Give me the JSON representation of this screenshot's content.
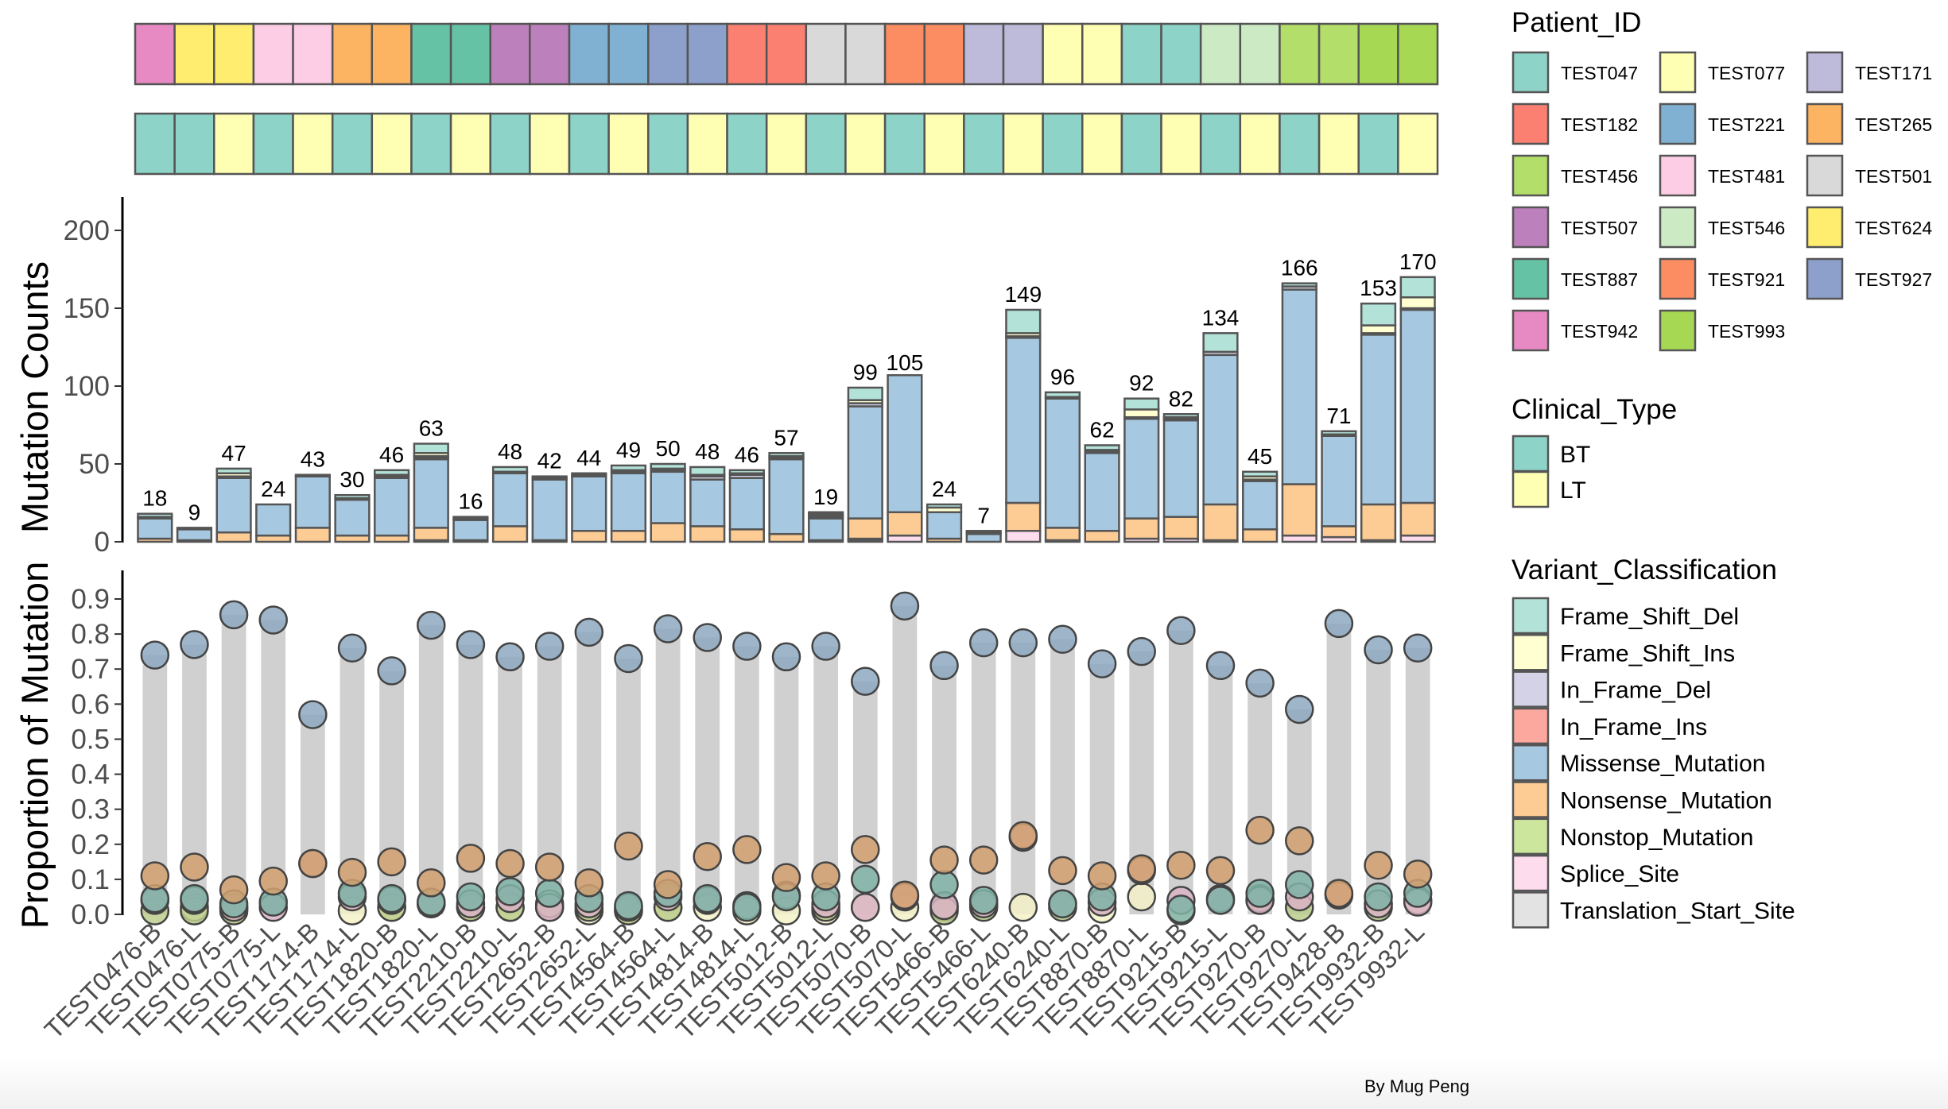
{
  "chart_data": {
    "type": "bar",
    "samples": [
      "TEST0476-B",
      "TEST0476-L",
      "TEST0775-B",
      "TEST0775-L",
      "TEST1714-B",
      "TEST1714-L",
      "TEST1820-B",
      "TEST1820-L",
      "TEST2210-B",
      "TEST2210-L",
      "TEST2652-B",
      "TEST2652-L",
      "TEST4564-B",
      "TEST4564-L",
      "TEST4814-B",
      "TEST4814-L",
      "TEST5012-B",
      "TEST5012-L",
      "TEST5070-B",
      "TEST5070-L",
      "TEST5466-B",
      "TEST5466-L",
      "TEST6240-B",
      "TEST6240-L",
      "TEST8870-B",
      "TEST8870-L",
      "TEST9215-B",
      "TEST9215-L",
      "TEST9270-B",
      "TEST9270-L",
      "TEST9428-B",
      "TEST9932-B",
      "TEST9932-L"
    ],
    "patient_track": {
      "title": "Patient_ID",
      "values": [
        "TEST942",
        "TEST624",
        "TEST624",
        "TEST481",
        "TEST481",
        "TEST265",
        "TEST265",
        "TEST887",
        "TEST887",
        "TEST507",
        "TEST507",
        "TEST221",
        "TEST221",
        "TEST927",
        "TEST927",
        "TEST182",
        "TEST182",
        "TEST501",
        "TEST501",
        "TEST921",
        "TEST921",
        "TEST171",
        "TEST171",
        "TEST077",
        "TEST077",
        "TEST047",
        "TEST047",
        "TEST546",
        "TEST546",
        "TEST456",
        "TEST456",
        "TEST993",
        "TEST993"
      ],
      "legend": [
        {
          "label": "TEST047",
          "color": "#8DD3C7"
        },
        {
          "label": "TEST077",
          "color": "#FFFFB3"
        },
        {
          "label": "TEST171",
          "color": "#BEBADA"
        },
        {
          "label": "TEST182",
          "color": "#FB8072"
        },
        {
          "label": "TEST221",
          "color": "#80B1D3"
        },
        {
          "label": "TEST265",
          "color": "#FDB462"
        },
        {
          "label": "TEST456",
          "color": "#B3DE69"
        },
        {
          "label": "TEST481",
          "color": "#FCCDE5"
        },
        {
          "label": "TEST501",
          "color": "#D9D9D9"
        },
        {
          "label": "TEST507",
          "color": "#BC80BD"
        },
        {
          "label": "TEST546",
          "color": "#CCEBC5"
        },
        {
          "label": "TEST624",
          "color": "#FFED6F"
        },
        {
          "label": "TEST887",
          "color": "#66C2A5"
        },
        {
          "label": "TEST921",
          "color": "#FC8D62"
        },
        {
          "label": "TEST927",
          "color": "#8DA0CB"
        },
        {
          "label": "TEST942",
          "color": "#E78AC3"
        },
        {
          "label": "TEST993",
          "color": "#A6D854"
        }
      ]
    },
    "clinical_track": {
      "title": "Clinical_Type",
      "values": [
        "BT",
        "BT",
        "LT",
        "BT",
        "LT",
        "BT",
        "LT",
        "BT",
        "LT",
        "BT",
        "LT",
        "BT",
        "LT",
        "BT",
        "LT",
        "BT",
        "LT",
        "BT",
        "LT",
        "BT",
        "LT",
        "BT",
        "LT",
        "BT",
        "LT",
        "BT",
        "LT",
        "BT",
        "LT",
        "BT",
        "LT",
        "BT",
        "LT"
      ],
      "legend": [
        {
          "label": "BT",
          "color": "#8DD3C7"
        },
        {
          "label": "LT",
          "color": "#FFFFB3"
        }
      ]
    },
    "variant_legend": {
      "title": "Variant_Classification",
      "items": [
        {
          "label": "Frame_Shift_Del",
          "color": "#B3E2D9"
        },
        {
          "label": "Frame_Shift_Ins",
          "color": "#FFFFD1"
        },
        {
          "label": "In_Frame_Del",
          "color": "#D4D2E6"
        },
        {
          "label": "In_Frame_Ins",
          "color": "#FDA89E"
        },
        {
          "label": "Missense_Mutation",
          "color": "#A6C8E0"
        },
        {
          "label": "Nonsense_Mutation",
          "color": "#FDCB94"
        },
        {
          "label": "Nonstop_Mutation",
          "color": "#CCE69E"
        },
        {
          "label": "Splice_Site",
          "color": "#FDDCED"
        },
        {
          "label": "Translation_Start_Site",
          "color": "#E3E3E3"
        }
      ]
    },
    "counts_panel": {
      "ylabel": "Mutation Counts",
      "ylim": [
        0,
        220
      ],
      "yticks": [
        0,
        50,
        100,
        150,
        200
      ],
      "totals": [
        18,
        9,
        47,
        24,
        43,
        30,
        46,
        63,
        16,
        48,
        42,
        44,
        49,
        50,
        48,
        46,
        57,
        19,
        99,
        105,
        24,
        7,
        149,
        96,
        62,
        92,
        82,
        134,
        45,
        166,
        71,
        153,
        170
      ],
      "series": [
        {
          "name": "Splice_Site",
          "values": [
            0,
            0,
            0,
            0,
            0,
            0,
            0,
            1,
            0,
            0,
            1,
            0,
            0,
            0,
            0,
            0,
            0,
            0,
            1,
            4,
            0,
            0,
            7,
            1,
            0,
            2,
            2,
            1,
            0,
            4,
            3,
            1,
            4
          ]
        },
        {
          "name": "Nonstop_Mutation",
          "values": [
            0,
            0,
            0,
            0,
            0,
            0,
            0,
            0,
            0,
            0,
            0,
            0,
            0,
            0,
            0,
            0,
            0,
            0,
            1,
            0,
            0,
            0,
            0,
            0,
            0,
            0,
            0,
            0,
            0,
            0,
            0,
            0,
            0
          ]
        },
        {
          "name": "Nonsense_Mutation",
          "values": [
            2,
            1,
            6,
            4,
            9,
            4,
            4,
            8,
            1,
            10,
            0,
            7,
            7,
            12,
            10,
            8,
            5,
            1,
            13,
            15,
            2,
            0,
            18,
            8,
            7,
            13,
            14,
            23,
            8,
            33,
            7,
            23,
            21
          ]
        },
        {
          "name": "Missense_Mutation",
          "values": [
            13,
            7,
            35,
            20,
            33,
            23,
            37,
            44,
            13,
            34,
            39,
            35,
            37,
            33,
            30,
            33,
            48,
            14,
            72,
            88,
            17,
            5,
            106,
            83,
            50,
            64,
            62,
            96,
            31,
            125,
            58,
            109,
            124
          ]
        },
        {
          "name": "In_Frame_Del",
          "values": [
            1,
            0,
            1,
            0,
            0,
            0,
            1,
            1,
            0,
            1,
            0,
            0,
            1,
            1,
            2,
            2,
            1,
            1,
            2,
            0,
            0,
            1,
            1,
            1,
            1,
            1,
            1,
            2,
            1,
            2,
            1,
            1,
            1
          ]
        },
        {
          "name": "In_Frame_Ins",
          "values": [
            0,
            0,
            0,
            0,
            0,
            0,
            0,
            1,
            0,
            0,
            0,
            0,
            0,
            0,
            0,
            0,
            0,
            1,
            0,
            0,
            0,
            0,
            0,
            0,
            0,
            0,
            0,
            0,
            0,
            0,
            0,
            0,
            0
          ]
        },
        {
          "name": "Frame_Shift_Ins",
          "values": [
            0,
            1,
            2,
            0,
            0,
            1,
            1,
            2,
            1,
            0,
            1,
            1,
            1,
            1,
            1,
            1,
            1,
            1,
            2,
            0,
            3,
            0,
            2,
            0,
            1,
            5,
            1,
            0,
            2,
            0,
            0,
            5,
            7
          ]
        },
        {
          "name": "Frame_Shift_Del",
          "values": [
            2,
            0,
            3,
            0,
            1,
            2,
            3,
            6,
            1,
            3,
            1,
            1,
            3,
            3,
            5,
            2,
            2,
            1,
            8,
            0,
            2,
            1,
            15,
            3,
            3,
            7,
            2,
            12,
            3,
            2,
            2,
            14,
            13
          ]
        }
      ]
    },
    "proportion_panel": {
      "ylabel": "Proportion of Mutation",
      "ylim": [
        0,
        0.97
      ],
      "yticks": [
        0.0,
        0.1,
        0.2,
        0.3,
        0.4,
        0.5,
        0.6,
        0.7,
        0.8,
        0.9
      ],
      "missense": [
        0.74,
        0.77,
        0.855,
        0.84,
        0.57,
        0.76,
        0.695,
        0.825,
        0.77,
        0.735,
        0.765,
        0.805,
        0.73,
        0.815,
        0.79,
        0.765,
        0.735,
        0.765,
        0.665,
        0.88,
        0.71,
        0.775,
        0.775,
        0.785,
        0.715,
        0.75,
        0.81,
        0.71,
        0.66,
        0.585,
        0.83,
        0.755,
        0.76
      ],
      "nonsense": [
        0.11,
        0.135,
        0.07,
        0.095,
        0.145,
        0.12,
        0.15,
        0.09,
        0.16,
        0.145,
        0.135,
        0.09,
        0.195,
        0.085,
        0.165,
        0.185,
        0.105,
        0.11,
        0.185,
        0.055,
        0.155,
        0.155,
        0.225,
        0.125,
        0.11,
        0.13,
        0.14,
        0.125,
        0.24,
        0.21,
        0.06,
        0.14,
        0.115
      ],
      "frame_shift_del": [
        0.045,
        0.045,
        0.03,
        0.035,
        0,
        0.06,
        0.045,
        0.035,
        0.05,
        0.065,
        0.06,
        0.045,
        0.025,
        0.06,
        0.045,
        0.02,
        0.05,
        0.05,
        0.1,
        0,
        0.085,
        0.04,
        0,
        0.03,
        0.05,
        0,
        0.015,
        0.04,
        0.06,
        0.085,
        0,
        0.05,
        0.06
      ],
      "splice_site": [
        0.04,
        0.04,
        0.02,
        0.02,
        0.145,
        0.05,
        0.04,
        0.03,
        0.03,
        0.045,
        0.02,
        0.03,
        0.02,
        0.05,
        0.04,
        0.025,
        0.055,
        0.03,
        0.02,
        0.05,
        0.025,
        0.03,
        0.22,
        0.03,
        0.035,
        0.125,
        0.04,
        0.045,
        0.04,
        0.05,
        0.055,
        0.03,
        0.035
      ],
      "nonstop": [
        0.01,
        0.01,
        0.01,
        0,
        0,
        0,
        0.02,
        0,
        0.02,
        0.02,
        0.03,
        0.02,
        0.01,
        0.02,
        0,
        0,
        0,
        0.02,
        0,
        0,
        0.01,
        0.02,
        0,
        0.02,
        0,
        0,
        0,
        0,
        0.045,
        0.02,
        0,
        0.02,
        0
      ],
      "frame_shift_ins": [
        0,
        0.02,
        0.02,
        0,
        0,
        0.01,
        0.02,
        0.03,
        0.02,
        0.02,
        0.02,
        0.01,
        0.01,
        0.02,
        0.02,
        0.01,
        0.01,
        0.01,
        0.02,
        0.02,
        0.02,
        0.03,
        0.02,
        0,
        0.015,
        0.05,
        0.01,
        0,
        0.04,
        0,
        0,
        0.03,
        0.04
      ]
    }
  },
  "credit": "By Mug Peng"
}
